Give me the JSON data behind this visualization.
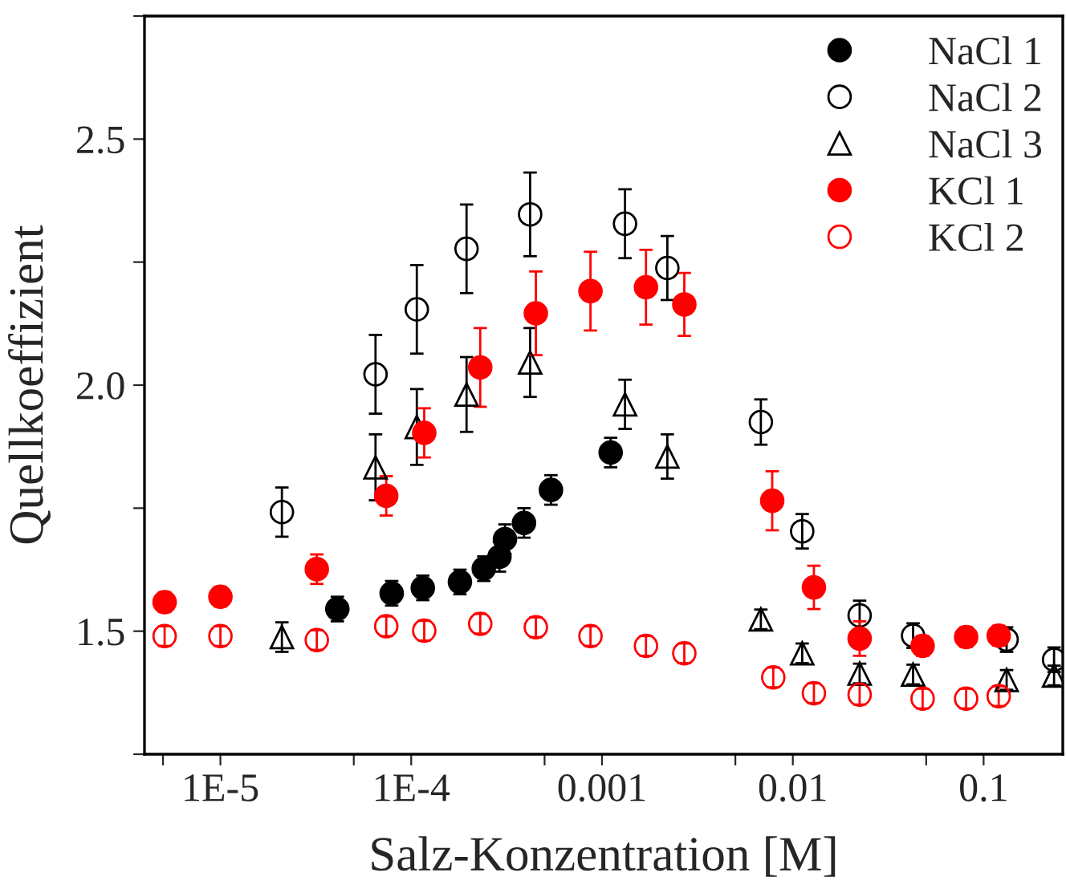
{
  "chart_data": {
    "type": "scatter",
    "xlabel": "Salz-Konzentration [M]",
    "ylabel": "Quellkoeffizient",
    "log": "x",
    "xlim": [
      4e-06,
      0.26
    ],
    "ylim": [
      1.25,
      2.75
    ],
    "xticks": [
      {
        "value": 5e-06,
        "label": null
      },
      {
        "value": 1e-05,
        "label": "1E-5"
      },
      {
        "value": 5e-05,
        "label": null
      },
      {
        "value": 0.0001,
        "label": "1E-4"
      },
      {
        "value": 0.0005,
        "label": null
      },
      {
        "value": 0.001,
        "label": "0.001"
      },
      {
        "value": 0.005,
        "label": null
      },
      {
        "value": 0.01,
        "label": "0.01"
      },
      {
        "value": 0.05,
        "label": null
      },
      {
        "value": 0.1,
        "label": "0.1"
      }
    ],
    "yticks": [
      {
        "value": 1.25,
        "label": null
      },
      {
        "value": 1.5,
        "label": "1.5"
      },
      {
        "value": 1.75,
        "label": null
      },
      {
        "value": 2.0,
        "label": "2.0"
      },
      {
        "value": 2.25,
        "label": null
      },
      {
        "value": 2.5,
        "label": "2.5"
      },
      {
        "value": 2.75,
        "label": null
      }
    ],
    "grid": false,
    "legend": "top right",
    "series": [
      {
        "name": "NaCl 1",
        "color": "#000000",
        "marker": "circle",
        "x": [
          4.1e-05,
          7.9e-05,
          0.000115,
          0.00018,
          0.00024,
          0.00029,
          0.00031,
          0.00039,
          0.00054,
          0.00111
        ],
        "values": [
          1.545,
          1.577,
          1.588,
          1.6,
          1.627,
          1.651,
          1.687,
          1.72,
          1.787,
          1.863
        ],
        "errors": [
          0.025,
          0.025,
          0.025,
          0.025,
          0.025,
          0.03,
          0.03,
          0.03,
          0.03,
          0.03
        ]
      },
      {
        "name": "NaCl 2",
        "color": "#000000",
        "marker": "circle",
        "x": [
          2.1e-05,
          6.5e-05,
          0.000107,
          0.000195,
          0.00042,
          0.00132,
          0.0022,
          0.0068,
          0.0112,
          0.0224,
          0.0427,
          0.132,
          0.234
        ],
        "values": [
          1.742,
          2.022,
          2.154,
          2.277,
          2.347,
          2.328,
          2.238,
          1.925,
          1.703,
          1.532,
          1.491,
          1.483,
          1.442
        ],
        "errors": [
          0.05,
          0.08,
          0.09,
          0.09,
          0.085,
          0.07,
          0.065,
          0.046,
          0.035,
          0.03,
          0.025,
          0.025,
          0.025
        ]
      },
      {
        "name": "NaCl 3",
        "color": "#000000",
        "marker": "triangle",
        "x": [
          2.1e-05,
          6.5e-05,
          0.000107,
          0.000195,
          0.00042,
          0.00132,
          0.0022,
          0.0068,
          0.0112,
          0.0224,
          0.0427,
          0.132,
          0.234
        ],
        "values": [
          1.488,
          1.833,
          1.915,
          1.981,
          2.046,
          1.961,
          1.855,
          1.524,
          1.455,
          1.414,
          1.412,
          1.401,
          1.41
        ],
        "errors": [
          0.03,
          0.067,
          0.077,
          0.076,
          0.07,
          0.05,
          0.045,
          0.02,
          0.02,
          0.02,
          0.02,
          0.02,
          0.02
        ]
      },
      {
        "name": "KCl 1",
        "color": "#ff0000",
        "marker": "circle",
        "x": [
          5.1e-06,
          1e-05,
          3.2e-05,
          7.4e-05,
          0.000117,
          0.00023,
          0.00045,
          0.00087,
          0.0017,
          0.0027,
          0.0078,
          0.0129,
          0.0224,
          0.0479,
          0.081,
          0.12
        ],
        "values": [
          1.559,
          1.57,
          1.626,
          1.775,
          1.903,
          2.036,
          2.146,
          2.191,
          2.199,
          2.164,
          1.765,
          1.589,
          1.485,
          1.47,
          1.488,
          1.491
        ],
        "errors": [
          0.02,
          0.02,
          0.03,
          0.04,
          0.05,
          0.08,
          0.085,
          0.08,
          0.076,
          0.064,
          0.06,
          0.044,
          0.035,
          0.02,
          0.02,
          0.02
        ]
      },
      {
        "name": "KCl 2",
        "color": "#ff0000",
        "marker": "circle",
        "x": [
          5.1e-06,
          1e-05,
          3.2e-05,
          7.4e-05,
          0.000117,
          0.00023,
          0.00045,
          0.00087,
          0.0017,
          0.0027,
          0.0079,
          0.0129,
          0.0224,
          0.0479,
          0.081,
          0.12
        ],
        "values": [
          1.49,
          1.49,
          1.482,
          1.51,
          1.501,
          1.515,
          1.508,
          1.49,
          1.47,
          1.455,
          1.406,
          1.374,
          1.371,
          1.363,
          1.363,
          1.368
        ],
        "errors": [
          0.02,
          0.02,
          0.02,
          0.02,
          0.02,
          0.02,
          0.02,
          0.02,
          0.02,
          0.02,
          0.02,
          0.02,
          0.02,
          0.02,
          0.02,
          0.02
        ]
      }
    ]
  }
}
